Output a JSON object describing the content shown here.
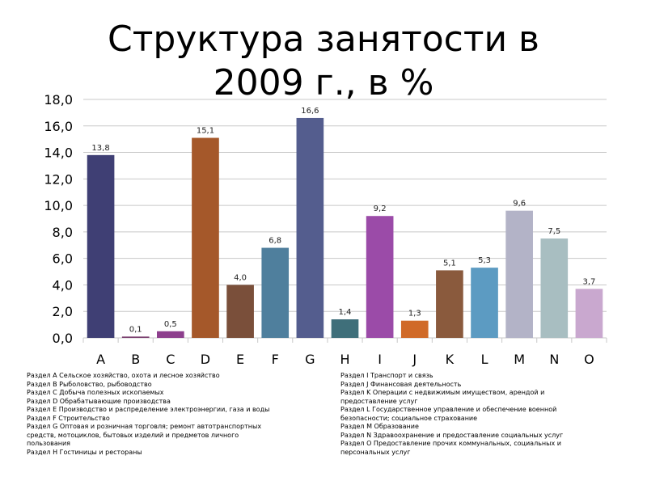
{
  "slide": {
    "title_line1": "Структура занятости в",
    "title_line2": "2009 г., в %"
  },
  "chart_data": {
    "type": "bar",
    "title": "Структура занятости в 2009 г., в %",
    "categories": [
      "A",
      "B",
      "C",
      "D",
      "E",
      "F",
      "G",
      "H",
      "I",
      "J",
      "K",
      "L",
      "M",
      "N",
      "O"
    ],
    "values": [
      13.8,
      0.1,
      0.5,
      15.1,
      4.0,
      6.8,
      16.6,
      1.4,
      9.2,
      1.3,
      5.1,
      5.3,
      9.6,
      7.5,
      3.7
    ],
    "value_labels": [
      "13,8",
      "0,1",
      "0,5",
      "15,1",
      "4,0",
      "6,8",
      "16,6",
      "1,4",
      "9,2",
      "1,3",
      "5,1",
      "5,3",
      "9,6",
      "7,5",
      "3,7"
    ],
    "bar_colors": [
      "#3f3f74",
      "#7a3f6f",
      "#8d3f8d",
      "#a5582a",
      "#7a4f3a",
      "#4f7f9d",
      "#545d8e",
      "#3f6f7a",
      "#9b4ba8",
      "#d06a28",
      "#8a5a3d",
      "#5c9bc2",
      "#b3b3c7",
      "#a8bec1",
      "#c9a8cf"
    ],
    "ylim": [
      0,
      18
    ],
    "yticks": [
      0,
      2,
      4,
      6,
      8,
      10,
      12,
      14,
      16,
      18
    ],
    "ytick_labels": [
      "0,0",
      "2,0",
      "4,0",
      "6,0",
      "8,0",
      "10,0",
      "12,0",
      "14,0",
      "16,0",
      "18,0"
    ],
    "grid": true,
    "xlabel": "",
    "ylabel": ""
  },
  "legend": {
    "left": [
      "Раздел A Сельское хозяйство, охота и лесное хозяйство",
      "Раздел B Рыболовство, рыбоводство",
      "Раздел C Добыча полезных ископаемых",
      "Раздел D Обрабатывающие производства",
      "Раздел E Производство и распределение электроэнергии, газа и воды",
      "Раздел F Строительство",
      "Раздел G Оптовая и розничная торговля; ремонт автотранспортных",
      "средств, мотоциклов, бытовых изделий и предметов личного",
      "пользования",
      "Раздел H Гостиницы и рестораны"
    ],
    "right": [
      "Раздел I Транспорт и связь",
      "Раздел J Финансовая деятельность",
      "Раздел K Операции с недвижимым имуществом, арендой и",
      "предоставление услуг",
      "Раздел L Государственное управление и обеспечение военной",
      "безопасности; социальное страхование",
      "Раздел M Образование",
      "Раздел N Здравоохранение и предоставление социальных услуг",
      "Раздел O Предоставление прочих коммунальных, социальных и",
      "персональных услуг"
    ]
  }
}
